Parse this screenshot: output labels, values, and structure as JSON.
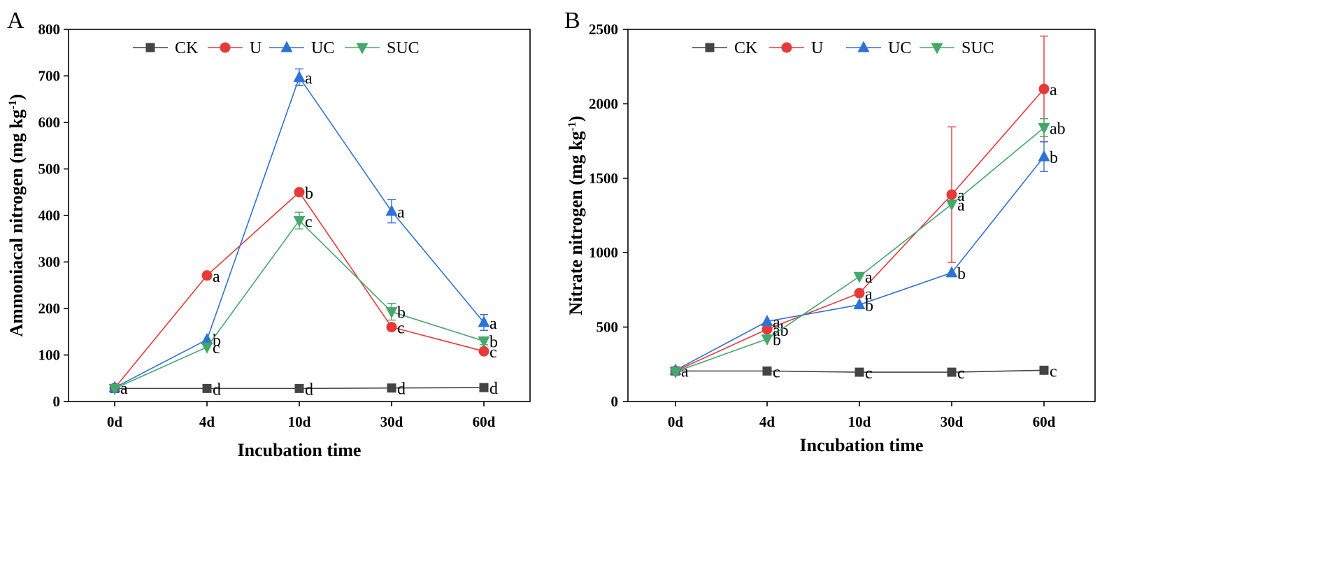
{
  "series_styles": {
    "CK": {
      "color": "#444444",
      "marker": "square"
    },
    "U": {
      "color": "#e63a3a",
      "marker": "circle"
    },
    "UC": {
      "color": "#2f72d6",
      "marker": "triangle-up"
    },
    "SUC": {
      "color": "#44a86b",
      "marker": "triangle-down"
    }
  },
  "chart_data": [
    {
      "panel": "A",
      "type": "line",
      "categories": [
        "0d",
        "4d",
        "10d",
        "30d",
        "60d"
      ],
      "xlabel": "Incubation time",
      "ylabel": "Ammoniacal nitrogen (mg kg",
      "ylabel_sup": "-1",
      "ylabel_close": ")",
      "ylim": [
        0,
        800
      ],
      "yticks": [
        0,
        100,
        200,
        300,
        400,
        500,
        600,
        700,
        800
      ],
      "legend": [
        "CK",
        "U",
        "UC",
        "SUC"
      ],
      "legend_position": "top",
      "series": [
        {
          "name": "CK",
          "values": [
            28,
            28,
            28,
            29,
            30
          ],
          "errors": [
            0,
            0,
            0,
            0,
            0
          ],
          "labels": [
            "",
            "d",
            "d",
            "d",
            "d"
          ]
        },
        {
          "name": "U",
          "values": [
            29,
            271,
            450,
            160,
            108
          ],
          "errors": [
            0,
            0,
            0,
            0,
            0
          ],
          "labels": [
            "",
            "a",
            "b",
            "c",
            "c"
          ]
        },
        {
          "name": "UC",
          "values": [
            30,
            133,
            697,
            409,
            170
          ],
          "errors": [
            0,
            0,
            18,
            25,
            17
          ],
          "labels": [
            "a",
            "b",
            "a",
            "a",
            "a"
          ]
        },
        {
          "name": "SUC",
          "values": [
            28,
            117,
            389,
            193,
            130
          ],
          "errors": [
            0,
            0,
            18,
            18,
            8
          ],
          "labels": [
            "",
            "c",
            "c",
            "b",
            "b"
          ]
        }
      ]
    },
    {
      "panel": "B",
      "type": "line",
      "categories": [
        "0d",
        "4d",
        "10d",
        "30d",
        "60d"
      ],
      "xlabel": "Incubation time",
      "ylabel": "Nitrate nitrogen (mg kg",
      "ylabel_sup": "-1",
      "ylabel_close": ")",
      "ylim": [
        0,
        2500
      ],
      "yticks": [
        0,
        500,
        1000,
        1500,
        2000,
        2500
      ],
      "legend": [
        "CK",
        "U",
        "UC",
        "SUC"
      ],
      "legend_position": "top",
      "series": [
        {
          "name": "CK",
          "values": [
            205,
            205,
            197,
            197,
            210
          ],
          "errors": [
            0,
            0,
            0,
            0,
            0
          ],
          "labels": [
            "",
            "c",
            "c",
            "c",
            "c"
          ]
        },
        {
          "name": "U",
          "values": [
            205,
            485,
            728,
            1390,
            2100
          ],
          "errors": [
            0,
            0,
            0,
            455,
            355
          ],
          "labels": [
            "",
            "ab",
            "a",
            "a",
            "a"
          ]
        },
        {
          "name": "UC",
          "values": [
            210,
            538,
            650,
            865,
            1645
          ],
          "errors": [
            0,
            0,
            0,
            0,
            100
          ],
          "labels": [
            "a",
            "a",
            "b",
            "b",
            "b"
          ]
        },
        {
          "name": "SUC",
          "values": [
            200,
            420,
            840,
            1325,
            1840
          ],
          "errors": [
            0,
            0,
            0,
            0,
            60
          ],
          "labels": [
            "",
            "b",
            "a",
            "a",
            "ab"
          ]
        }
      ]
    }
  ]
}
